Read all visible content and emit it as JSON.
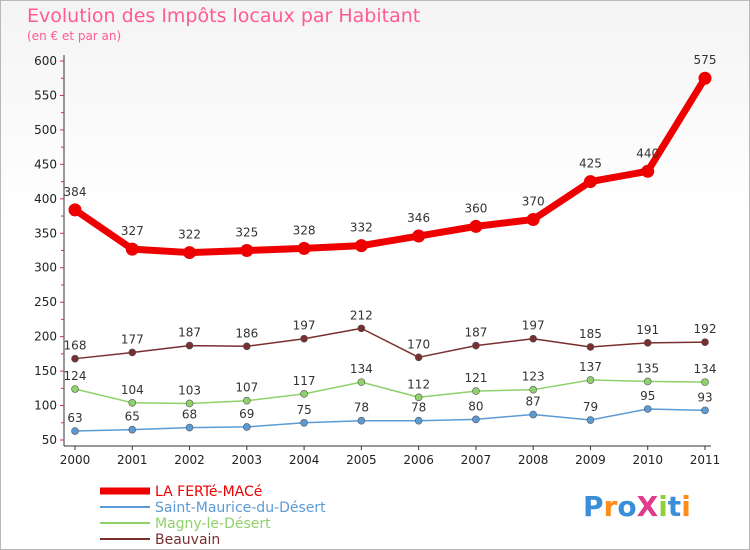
{
  "chart_data": {
    "type": "line",
    "title": "Evolution des Impôts locaux par Habitant",
    "subtitle": "(en € et par an)",
    "xlabel": "",
    "ylabel": "",
    "ylim": [
      50,
      600
    ],
    "yticks": [
      50,
      100,
      150,
      200,
      250,
      300,
      350,
      400,
      450,
      500,
      550,
      600
    ],
    "categories": [
      "2000",
      "2001",
      "2002",
      "2003",
      "2004",
      "2005",
      "2006",
      "2007",
      "2008",
      "2009",
      "2010",
      "2011"
    ],
    "series": [
      {
        "name": "LA FERTé-MACé",
        "color": "#ee0000",
        "values": [
          384,
          327,
          322,
          325,
          328,
          332,
          346,
          360,
          370,
          425,
          440,
          575
        ]
      },
      {
        "name": "Saint-Maurice-du-Désert",
        "color": "#5b9bd5",
        "values": [
          63,
          65,
          68,
          69,
          75,
          78,
          78,
          80,
          87,
          79,
          95,
          93
        ]
      },
      {
        "name": "Magny-le-Désert",
        "color": "#8fd16a",
        "values": [
          124,
          104,
          103,
          107,
          117,
          134,
          112,
          121,
          123,
          137,
          135,
          134
        ]
      },
      {
        "name": "Beauvain",
        "color": "#7a2f2f",
        "values": [
          168,
          177,
          187,
          186,
          197,
          212,
          170,
          187,
          197,
          185,
          191,
          192
        ]
      }
    ],
    "legend_position": "bottom-left"
  },
  "watermark": {
    "text": "ProXiti",
    "colors": [
      "#3a8fd8",
      "#ff8c1a",
      "#3a8fd8",
      "#e03a8a",
      "#8fcf3a",
      "#3a8fd8",
      "#ff8c1a"
    ]
  }
}
